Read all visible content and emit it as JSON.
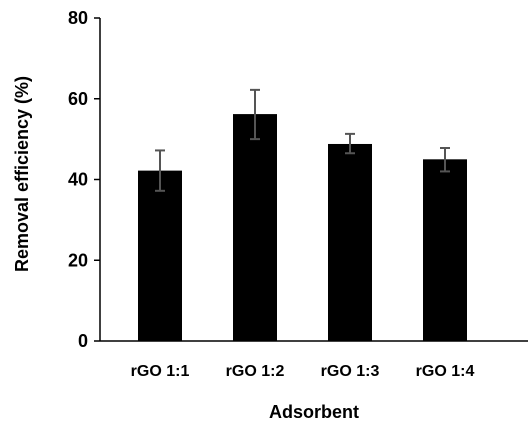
{
  "chart_data": {
    "type": "bar",
    "title": "",
    "xlabel": "Adsorbent",
    "ylabel": "Removal efficiency (%)",
    "categories": [
      "rGO 1:1",
      "rGO 1:2",
      "rGO 1:3",
      "rGO 1:4"
    ],
    "values": [
      42.2,
      56.2,
      48.8,
      45.0
    ],
    "error_plus": [
      5.0,
      6.0,
      2.5,
      2.8
    ],
    "error_minus": [
      5.0,
      6.2,
      2.3,
      3.0
    ],
    "ylim": [
      0,
      80
    ],
    "yticks": [
      0,
      20,
      40,
      60,
      80
    ],
    "grid": false,
    "bar_color": "#000000",
    "error_bar_color": "#555555"
  }
}
